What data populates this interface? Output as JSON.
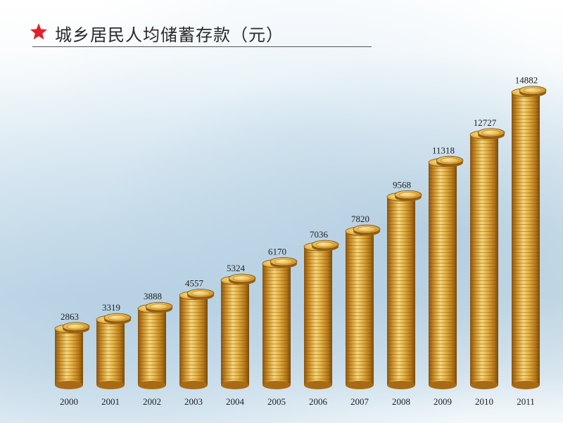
{
  "header": {
    "title": "城乡居民人均储蓄存款（元）",
    "star_color": "#e0202a"
  },
  "colors": {
    "coin_light": "#f2cf6a",
    "coin_mid": "#d29a2b",
    "coin_dark": "#8a5410",
    "coin_edge": "#6b3f0a"
  },
  "chart_data": {
    "type": "bar",
    "title": "城乡居民人均储蓄存款（元）",
    "xlabel": "",
    "ylabel": "",
    "categories": [
      "2000",
      "2001",
      "2002",
      "2003",
      "2004",
      "2005",
      "2006",
      "2007",
      "2008",
      "2009",
      "2010",
      "2011"
    ],
    "values": [
      2863,
      3319,
      3888,
      4557,
      5324,
      6170,
      7036,
      7820,
      9568,
      11318,
      12727,
      14882
    ],
    "ylim": [
      0,
      15000
    ],
    "grid": false,
    "legend": "none",
    "bar_style": "stacked gold coins"
  }
}
